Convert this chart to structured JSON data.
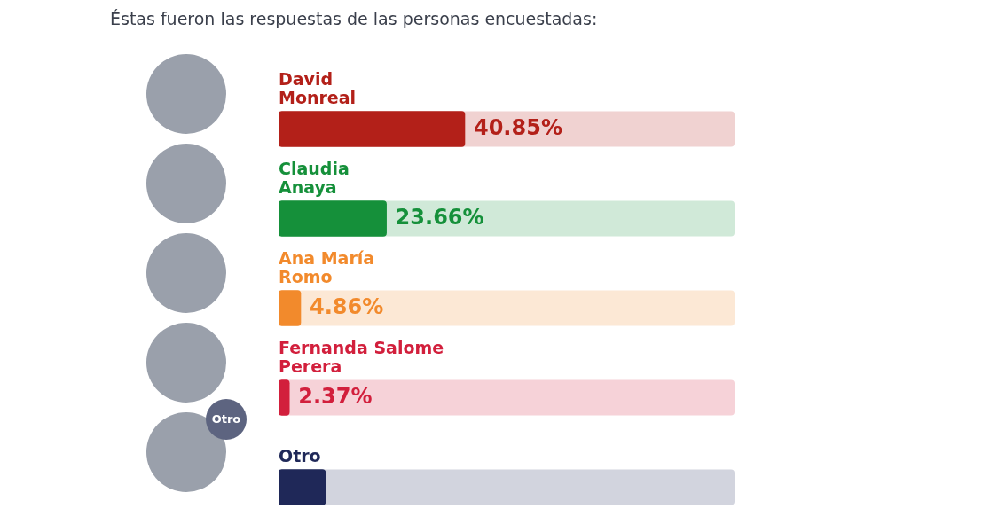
{
  "chart_data": {
    "type": "bar",
    "orientation": "horizontal",
    "subtitle": "Éstas fueron las respuestas de las personas encuestadas:",
    "categories": [
      "David Monreal",
      "Claudia Anaya",
      "Ana María Romo",
      "Fernanda Salome Perera",
      "Otro"
    ],
    "values": [
      40.85,
      23.66,
      4.86,
      2.37,
      10.3
    ],
    "colors": [
      "#b32019",
      "#15903a",
      "#f28a2c",
      "#d21f3c",
      "#1f2858"
    ],
    "value_labels": [
      "40.85%",
      "23.66%",
      "4.86%",
      "2.37%",
      null
    ],
    "xlim": [
      0,
      100
    ],
    "tick_labels": false,
    "legend": false,
    "annotations": [
      "Otro"
    ]
  }
}
